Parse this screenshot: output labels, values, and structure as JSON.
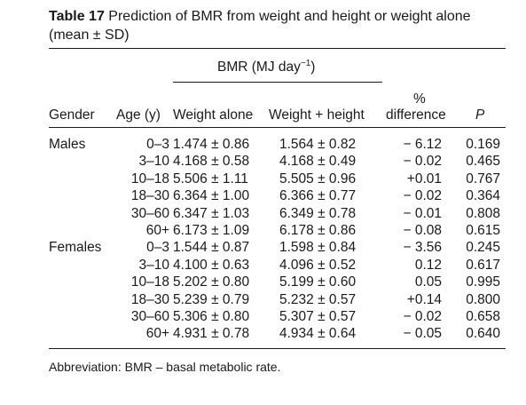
{
  "caption": {
    "label": "Table 17",
    "text_main": " Prediction of BMR from weight and height or weight alone (mean ± ",
    "text_sd": "SD",
    "text_end": ")"
  },
  "header": {
    "group_label": "BMR (MJ day",
    "group_exp": "−1",
    "group_close": ")",
    "pct_top": "%",
    "cols": [
      "Gender",
      "Age (y)",
      "Weight alone",
      "Weight + height",
      "difference",
      "P"
    ]
  },
  "rows": [
    {
      "gender": "Males",
      "age": "0–3",
      "wa": "1.474 ± 0.86",
      "wh": "1.564 ± 0.82",
      "diff": "− 6.12",
      "p": "0.169"
    },
    {
      "gender": "",
      "age": "3–10",
      "wa": "4.168 ± 0.58",
      "wh": "4.168 ± 0.49",
      "diff": "− 0.02",
      "p": "0.465"
    },
    {
      "gender": "",
      "age": "10–18",
      "wa": "5.506 ± 1.11",
      "wh": "5.505 ± 0.96",
      "diff": "+0.01",
      "p": "0.767"
    },
    {
      "gender": "",
      "age": "18–30",
      "wa": "6.364 ± 1.00",
      "wh": "6.366 ± 0.77",
      "diff": "− 0.02",
      "p": "0.364"
    },
    {
      "gender": "",
      "age": "30–60",
      "wa": "6.347 ± 1.03",
      "wh": "6.349 ± 0.78",
      "diff": "− 0.01",
      "p": "0.808"
    },
    {
      "gender": "",
      "age": "60+",
      "wa": "6.173 ± 1.09",
      "wh": "6.178 ± 0.86",
      "diff": "− 0.08",
      "p": "0.615"
    },
    {
      "gender": "Females",
      "age": "0–3",
      "wa": "1.544 ± 0.87",
      "wh": "1.598 ± 0.84",
      "diff": "− 3.56",
      "p": "0.245"
    },
    {
      "gender": "",
      "age": "3–10",
      "wa": "4.100 ± 0.63",
      "wh": "4.096 ± 0.52",
      "diff": "0.12",
      "p": "0.617"
    },
    {
      "gender": "",
      "age": "10–18",
      "wa": "5.202 ± 0.80",
      "wh": "5.199 ± 0.60",
      "diff": "0.05",
      "p": "0.995"
    },
    {
      "gender": "",
      "age": "18–30",
      "wa": "5.239 ± 0.79",
      "wh": "5.232 ± 0.57",
      "diff": "+0.14",
      "p": "0.800"
    },
    {
      "gender": "",
      "age": "30–60",
      "wa": "5.306 ± 0.80",
      "wh": "5.307 ± 0.57",
      "diff": "− 0.02",
      "p": "0.658"
    },
    {
      "gender": "",
      "age": "60+",
      "wa": "4.931 ± 0.78",
      "wh": "4.934 ± 0.64",
      "diff": "− 0.05",
      "p": "0.640"
    }
  ],
  "footnote": "Abbreviation: BMR – basal metabolic rate."
}
